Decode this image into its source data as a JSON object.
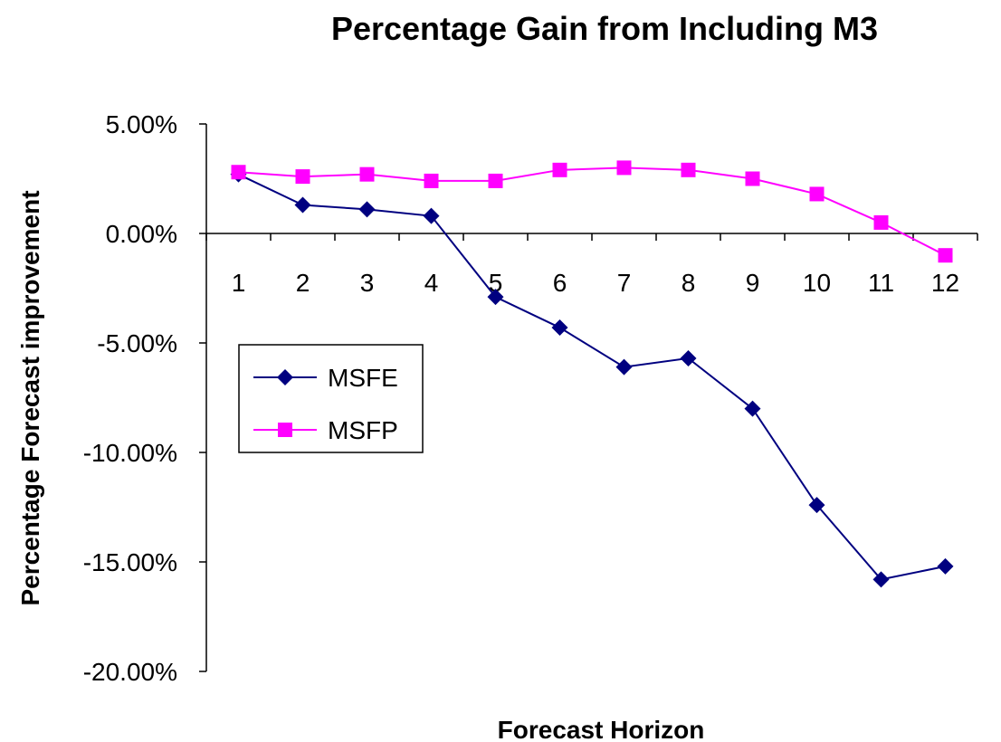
{
  "chart_data": {
    "type": "line",
    "title": "Percentage Gain from Including M3",
    "xlabel": "Forecast Horizon",
    "ylabel": "Percentage Forecast improvement",
    "categories": [
      "1",
      "2",
      "3",
      "4",
      "5",
      "6",
      "7",
      "8",
      "9",
      "10",
      "11",
      "12"
    ],
    "ylim": [
      -20,
      5
    ],
    "yticks": [
      5,
      0,
      -5,
      -10,
      -15,
      -20
    ],
    "ytick_labels": [
      "5.00%",
      "0.00%",
      "-5.00%",
      "-10.00%",
      "-15.00%",
      "-20.00%"
    ],
    "grid": false,
    "legend": "left",
    "series": [
      {
        "name": "MSFE",
        "color": "#000080",
        "marker": "diamond",
        "values": [
          2.7,
          1.3,
          1.1,
          0.8,
          -2.9,
          -4.3,
          -6.1,
          -5.7,
          -8.0,
          -12.4,
          -15.8,
          -15.2
        ]
      },
      {
        "name": "MSFP",
        "color": "#FF00FF",
        "marker": "square",
        "values": [
          2.8,
          2.6,
          2.7,
          2.4,
          2.4,
          2.9,
          3.0,
          2.9,
          2.5,
          1.8,
          0.5,
          -1.0
        ]
      }
    ]
  }
}
